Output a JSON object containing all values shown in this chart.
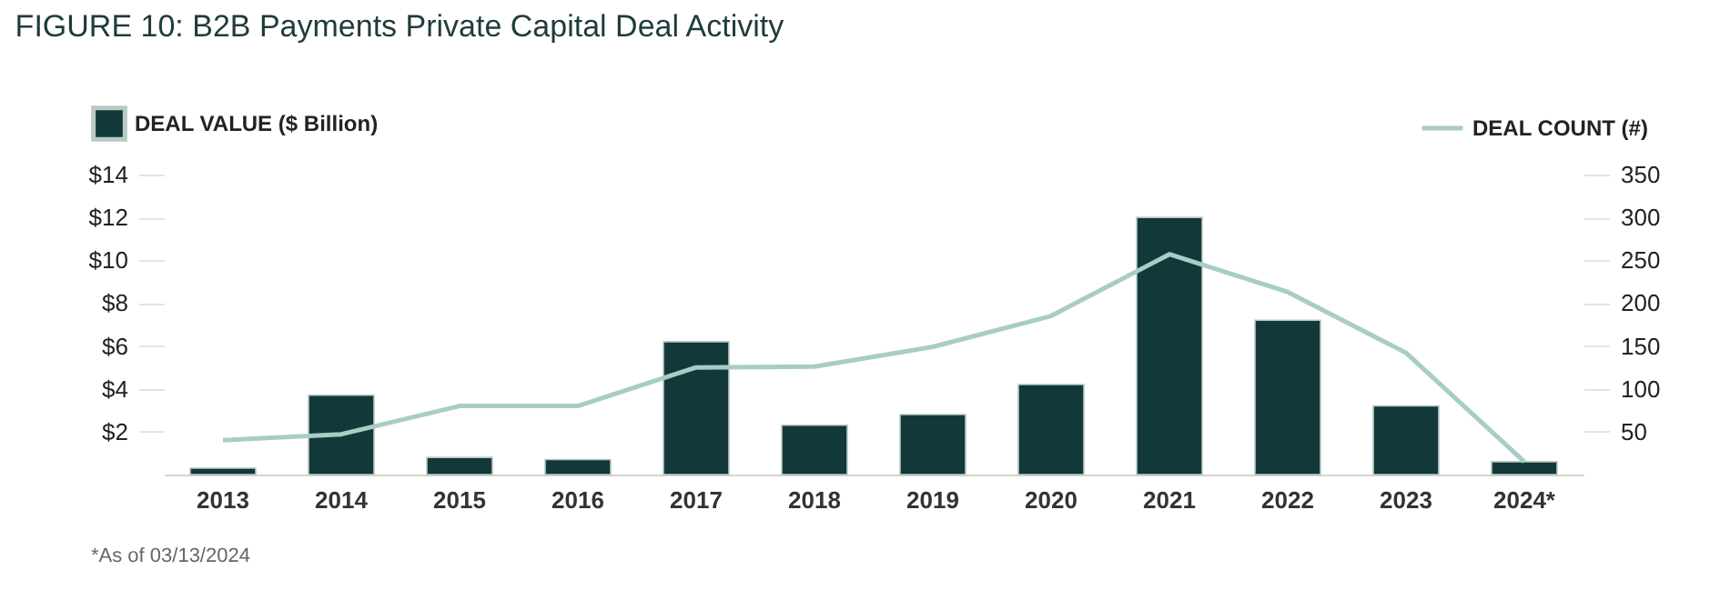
{
  "chart_data": {
    "type": "bar",
    "title": "FIGURE 10:  B2B Payments Private Capital Deal Activity",
    "categories": [
      "2013",
      "2014",
      "2015",
      "2016",
      "2017",
      "2018",
      "2019",
      "2020",
      "2021",
      "2022",
      "2023",
      "2024*"
    ],
    "series": [
      {
        "name": "DEAL VALUE ($ Billion)",
        "color": "#12383a",
        "values": [
          0.3,
          3.7,
          0.8,
          0.7,
          6.2,
          2.3,
          2.8,
          4.2,
          12,
          7.2,
          3.2,
          0.6
        ]
      },
      {
        "name": "DEAL COUNT (#)",
        "type": "line",
        "axis": "y2",
        "color": "#a7cdc4",
        "values": [
          40,
          47,
          80,
          80,
          125,
          126,
          149,
          185,
          257,
          213,
          142,
          15
        ]
      }
    ],
    "ylim": [
      0,
      14
    ],
    "yticks": [
      {
        "value": 2,
        "label": "$2"
      },
      {
        "value": 4,
        "label": "$4"
      },
      {
        "value": 6,
        "label": "$6"
      },
      {
        "value": 8,
        "label": "$8"
      },
      {
        "value": 10,
        "label": "$10"
      },
      {
        "value": 12,
        "label": "$12"
      },
      {
        "value": 14,
        "label": "$14"
      }
    ],
    "y2lim": [
      0,
      350
    ],
    "y2ticks": [
      50,
      100,
      150,
      200,
      250,
      300,
      350
    ],
    "grid": false,
    "legend": "top",
    "annotations": [
      "*As of 03/13/2024"
    ]
  }
}
